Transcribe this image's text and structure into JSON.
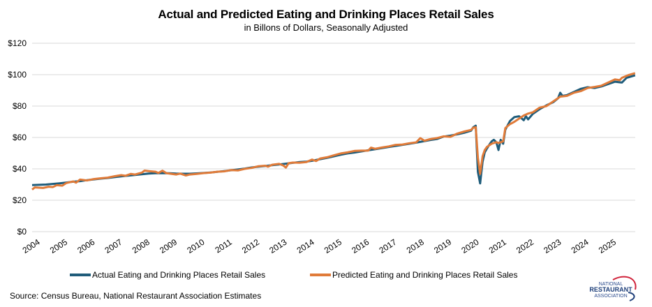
{
  "chart_data": {
    "type": "line",
    "title": "Actual and Predicted Eating and Drinking Places Retail Sales",
    "subtitle": "in Billons of Dollars, Seasonally Adjusted",
    "xlabel": "",
    "ylabel": "",
    "ylim": [
      0,
      120
    ],
    "yticks": [
      0,
      20,
      40,
      60,
      80,
      100,
      120
    ],
    "ytick_labels": [
      "$0",
      "$20",
      "$40",
      "$60",
      "$80",
      "$100",
      "$120"
    ],
    "xlim": [
      2004.0,
      2025.98
    ],
    "xticks": [
      2004,
      2005,
      2006,
      2007,
      2008,
      2009,
      2010,
      2011,
      2012,
      2013,
      2014,
      2015,
      2016,
      2017,
      2018,
      2019,
      2020,
      2021,
      2022,
      2023,
      2024,
      2025
    ],
    "xtick_labels": [
      "2004",
      "2005",
      "2006",
      "2007",
      "2008",
      "2009",
      "2010",
      "2011",
      "2012",
      "2013",
      "2014",
      "2015",
      "2016",
      "2017",
      "2018",
      "2019",
      "2020",
      "2021",
      "2022",
      "2023",
      "2024",
      "2025"
    ],
    "grid": true,
    "legend_position": "bottom",
    "series": [
      {
        "name": "Actual Eating and Drinking Places Retail Sales",
        "color": "#1f5c7a",
        "points": [
          [
            2004.0,
            29.7
          ],
          [
            2004.25,
            29.8
          ],
          [
            2004.5,
            30.0
          ],
          [
            2004.75,
            30.4
          ],
          [
            2005.0,
            30.8
          ],
          [
            2005.25,
            31.3
          ],
          [
            2005.5,
            31.8
          ],
          [
            2005.75,
            32.2
          ],
          [
            2006.0,
            32.8
          ],
          [
            2006.25,
            33.3
          ],
          [
            2006.5,
            33.8
          ],
          [
            2006.75,
            34.2
          ],
          [
            2007.0,
            34.7
          ],
          [
            2007.25,
            35.2
          ],
          [
            2007.5,
            35.7
          ],
          [
            2007.75,
            36.1
          ],
          [
            2008.0,
            36.6
          ],
          [
            2008.25,
            37.0
          ],
          [
            2008.5,
            37.2
          ],
          [
            2008.75,
            37.3
          ],
          [
            2009.0,
            37.2
          ],
          [
            2009.25,
            37.0
          ],
          [
            2009.5,
            36.9
          ],
          [
            2009.75,
            36.9
          ],
          [
            2010.0,
            37.1
          ],
          [
            2010.25,
            37.4
          ],
          [
            2010.5,
            37.7
          ],
          [
            2010.75,
            38.1
          ],
          [
            2011.0,
            38.6
          ],
          [
            2011.25,
            39.1
          ],
          [
            2011.5,
            39.6
          ],
          [
            2011.75,
            40.2
          ],
          [
            2012.0,
            40.9
          ],
          [
            2012.25,
            41.4
          ],
          [
            2012.5,
            41.8
          ],
          [
            2012.75,
            42.3
          ],
          [
            2013.0,
            42.8
          ],
          [
            2013.25,
            43.3
          ],
          [
            2013.5,
            43.8
          ],
          [
            2013.75,
            44.3
          ],
          [
            2014.0,
            44.6
          ],
          [
            2014.25,
            45.3
          ],
          [
            2014.5,
            46.2
          ],
          [
            2014.75,
            47.0
          ],
          [
            2015.0,
            48.0
          ],
          [
            2015.25,
            49.0
          ],
          [
            2015.5,
            49.8
          ],
          [
            2015.75,
            50.4
          ],
          [
            2016.0,
            51.1
          ],
          [
            2016.25,
            51.8
          ],
          [
            2016.5,
            52.5
          ],
          [
            2016.75,
            53.2
          ],
          [
            2017.0,
            53.9
          ],
          [
            2017.25,
            54.6
          ],
          [
            2017.5,
            55.3
          ],
          [
            2017.75,
            56.0
          ],
          [
            2018.0,
            56.7
          ],
          [
            2018.25,
            57.5
          ],
          [
            2018.5,
            58.3
          ],
          [
            2018.75,
            59.0
          ],
          [
            2019.0,
            60.6
          ],
          [
            2019.25,
            61.2
          ],
          [
            2019.5,
            62.0
          ],
          [
            2019.75,
            63.0
          ],
          [
            2020.0,
            64.3
          ],
          [
            2020.08,
            66.5
          ],
          [
            2020.17,
            67.5
          ],
          [
            2020.25,
            38.0
          ],
          [
            2020.33,
            30.7
          ],
          [
            2020.42,
            44.5
          ],
          [
            2020.5,
            50.5
          ],
          [
            2020.58,
            53.0
          ],
          [
            2020.67,
            55.5
          ],
          [
            2020.75,
            57.5
          ],
          [
            2020.83,
            58.5
          ],
          [
            2020.92,
            57.0
          ],
          [
            2021.0,
            52.0
          ],
          [
            2021.08,
            58.5
          ],
          [
            2021.17,
            56.0
          ],
          [
            2021.25,
            65.0
          ],
          [
            2021.42,
            70.5
          ],
          [
            2021.58,
            73.0
          ],
          [
            2021.75,
            73.5
          ],
          [
            2021.92,
            71.0
          ],
          [
            2022.0,
            73.5
          ],
          [
            2022.08,
            71.5
          ],
          [
            2022.25,
            75.0
          ],
          [
            2022.5,
            78.0
          ],
          [
            2022.75,
            80.5
          ],
          [
            2023.0,
            82.5
          ],
          [
            2023.17,
            85.0
          ],
          [
            2023.25,
            88.5
          ],
          [
            2023.33,
            86.5
          ],
          [
            2023.5,
            87.0
          ],
          [
            2023.75,
            89.0
          ],
          [
            2024.0,
            91.0
          ],
          [
            2024.25,
            92.0
          ],
          [
            2024.5,
            91.5
          ],
          [
            2024.75,
            92.5
          ],
          [
            2025.0,
            94.0
          ],
          [
            2025.25,
            95.5
          ],
          [
            2025.5,
            95.0
          ],
          [
            2025.67,
            98.0
          ],
          [
            2025.83,
            98.8
          ],
          [
            2025.98,
            99.6
          ]
        ]
      },
      {
        "name": "Predicted Eating and Drinking Places Retail Sales",
        "color": "#e07b39",
        "points": [
          [
            2004.0,
            26.8
          ],
          [
            2004.1,
            28.2
          ],
          [
            2004.25,
            28.0
          ],
          [
            2004.4,
            27.8
          ],
          [
            2004.6,
            28.6
          ],
          [
            2004.75,
            28.4
          ],
          [
            2004.9,
            29.6
          ],
          [
            2005.1,
            29.3
          ],
          [
            2005.25,
            31.0
          ],
          [
            2005.5,
            32.0
          ],
          [
            2005.6,
            31.2
          ],
          [
            2005.75,
            33.2
          ],
          [
            2006.0,
            32.6
          ],
          [
            2006.25,
            33.5
          ],
          [
            2006.5,
            34.0
          ],
          [
            2006.75,
            34.4
          ],
          [
            2007.0,
            35.3
          ],
          [
            2007.25,
            36.0
          ],
          [
            2007.4,
            35.6
          ],
          [
            2007.6,
            36.8
          ],
          [
            2007.75,
            36.4
          ],
          [
            2008.0,
            37.6
          ],
          [
            2008.1,
            38.9
          ],
          [
            2008.25,
            38.6
          ],
          [
            2008.5,
            38.2
          ],
          [
            2008.6,
            37.4
          ],
          [
            2008.75,
            38.8
          ],
          [
            2008.9,
            37.2
          ],
          [
            2009.0,
            37.0
          ],
          [
            2009.25,
            36.4
          ],
          [
            2009.4,
            37.0
          ],
          [
            2009.6,
            35.8
          ],
          [
            2009.75,
            36.4
          ],
          [
            2010.0,
            36.8
          ],
          [
            2010.25,
            37.3
          ],
          [
            2010.5,
            37.6
          ],
          [
            2010.75,
            38.2
          ],
          [
            2011.0,
            38.4
          ],
          [
            2011.25,
            39.2
          ],
          [
            2011.5,
            39.0
          ],
          [
            2011.75,
            40.0
          ],
          [
            2012.0,
            40.6
          ],
          [
            2012.25,
            41.7
          ],
          [
            2012.5,
            42.0
          ],
          [
            2012.6,
            41.4
          ],
          [
            2012.75,
            42.6
          ],
          [
            2013.0,
            43.2
          ],
          [
            2013.15,
            42.2
          ],
          [
            2013.25,
            40.8
          ],
          [
            2013.35,
            43.6
          ],
          [
            2013.5,
            44.0
          ],
          [
            2013.75,
            43.9
          ],
          [
            2014.0,
            44.3
          ],
          [
            2014.2,
            45.9
          ],
          [
            2014.35,
            45.0
          ],
          [
            2014.5,
            46.6
          ],
          [
            2014.75,
            47.4
          ],
          [
            2015.0,
            48.6
          ],
          [
            2015.25,
            49.8
          ],
          [
            2015.5,
            50.5
          ],
          [
            2015.75,
            51.4
          ],
          [
            2016.0,
            51.6
          ],
          [
            2016.25,
            51.6
          ],
          [
            2016.35,
            53.5
          ],
          [
            2016.5,
            52.8
          ],
          [
            2016.75,
            53.6
          ],
          [
            2017.0,
            54.3
          ],
          [
            2017.25,
            55.3
          ],
          [
            2017.5,
            55.5
          ],
          [
            2017.75,
            56.3
          ],
          [
            2018.0,
            56.9
          ],
          [
            2018.15,
            59.6
          ],
          [
            2018.3,
            57.9
          ],
          [
            2018.5,
            58.9
          ],
          [
            2018.75,
            59.6
          ],
          [
            2019.0,
            60.7
          ],
          [
            2019.25,
            60.4
          ],
          [
            2019.5,
            62.5
          ],
          [
            2019.75,
            63.8
          ],
          [
            2020.0,
            64.8
          ],
          [
            2020.08,
            66.2
          ],
          [
            2020.17,
            66.5
          ],
          [
            2020.25,
            47.0
          ],
          [
            2020.33,
            36.8
          ],
          [
            2020.42,
            48.0
          ],
          [
            2020.5,
            52.0
          ],
          [
            2020.58,
            54.0
          ],
          [
            2020.75,
            56.0
          ],
          [
            2020.92,
            57.0
          ],
          [
            2021.0,
            56.5
          ],
          [
            2021.17,
            57.5
          ],
          [
            2021.25,
            66.0
          ],
          [
            2021.42,
            68.5
          ],
          [
            2021.58,
            70.0
          ],
          [
            2021.75,
            72.0
          ],
          [
            2021.92,
            74.0
          ],
          [
            2022.08,
            75.2
          ],
          [
            2022.25,
            76.0
          ],
          [
            2022.5,
            79.0
          ],
          [
            2022.75,
            80.0
          ],
          [
            2023.0,
            83.0
          ],
          [
            2023.25,
            86.0
          ],
          [
            2023.5,
            86.5
          ],
          [
            2023.75,
            88.5
          ],
          [
            2024.0,
            89.5
          ],
          [
            2024.25,
            91.5
          ],
          [
            2024.5,
            92.2
          ],
          [
            2024.75,
            93.0
          ],
          [
            2025.0,
            95.0
          ],
          [
            2025.25,
            97.0
          ],
          [
            2025.42,
            96.5
          ],
          [
            2025.5,
            98.0
          ],
          [
            2025.75,
            99.8
          ],
          [
            2025.98,
            101.0
          ]
        ]
      }
    ]
  },
  "legend": {
    "items": [
      {
        "label": "Actual Eating and Drinking Places Retail Sales",
        "color": "#1f5c7a"
      },
      {
        "label": "Predicted Eating and Drinking Places Retail Sales",
        "color": "#e07b39"
      }
    ]
  },
  "footer": {
    "source": "Source: Census Bureau, National Restaurant Association Estimates"
  },
  "logo": {
    "line1": "NATIONAL",
    "line2": "RESTAURANT",
    "line3": "ASSOCIATION"
  }
}
